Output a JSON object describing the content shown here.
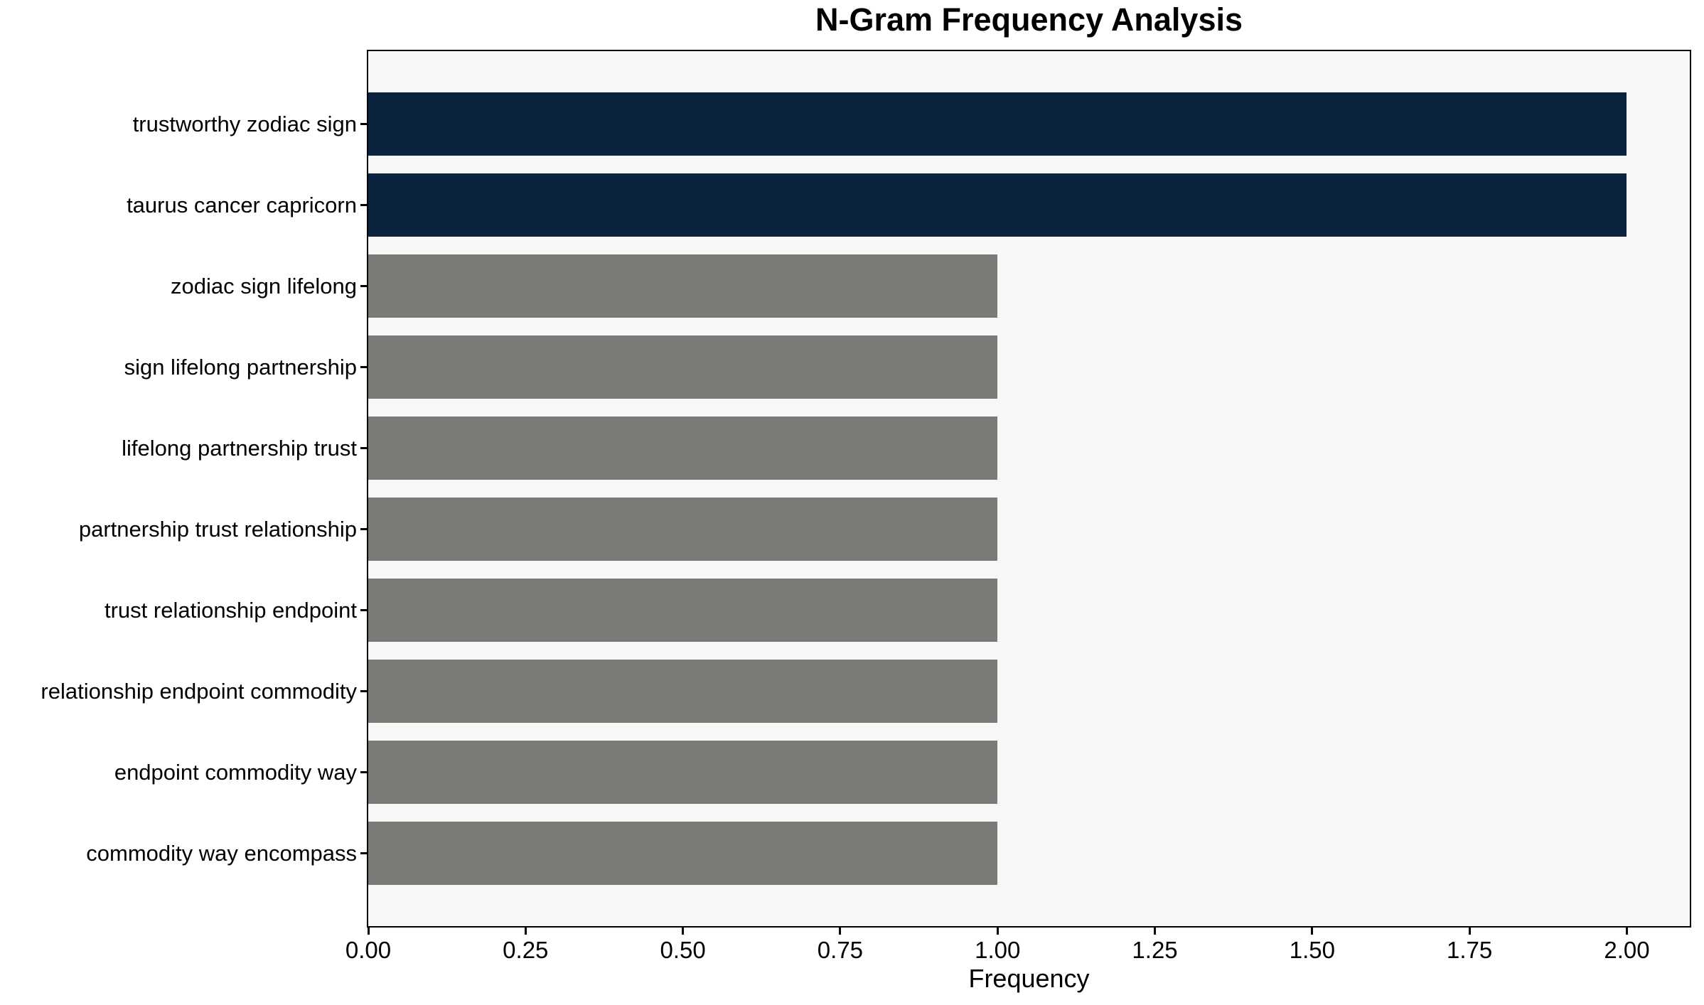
{
  "chart_data": {
    "type": "bar",
    "orientation": "horizontal",
    "title": "N-Gram Frequency Analysis",
    "xlabel": "Frequency",
    "ylabel": "",
    "categories": [
      "trustworthy zodiac sign",
      "taurus cancer capricorn",
      "zodiac sign lifelong",
      "sign lifelong partnership",
      "lifelong partnership trust",
      "partnership trust relationship",
      "trust relationship endpoint",
      "relationship endpoint commodity",
      "endpoint commodity way",
      "commodity way encompass"
    ],
    "values": [
      2,
      2,
      1,
      1,
      1,
      1,
      1,
      1,
      1,
      1
    ],
    "bar_colors": [
      "#0c2340",
      "#0c2340",
      "#7b7a76",
      "#7b7a76",
      "#7b7a76",
      "#7b7a76",
      "#7b7a76",
      "#7b7a76",
      "#7b7a76",
      "#7b7a76"
    ],
    "xlim": [
      0,
      2.1
    ],
    "xticks": [
      0.0,
      0.25,
      0.5,
      0.75,
      1.0,
      1.25,
      1.5,
      1.75,
      2.0
    ],
    "xtick_labels": [
      "0.00",
      "0.25",
      "0.50",
      "0.75",
      "1.00",
      "1.25",
      "1.50",
      "1.75",
      "2.00"
    ],
    "grid": false,
    "legend_position": "none",
    "colors": {
      "highlight_bar": "#0c2340",
      "default_bar": "#7b7a76",
      "plot_background": "#f7f7f7",
      "figure_background": "#ffffff",
      "spine": "#000000",
      "text": "#000000"
    }
  }
}
